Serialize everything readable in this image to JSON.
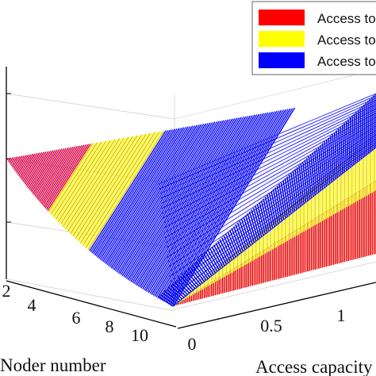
{
  "chart_data": {
    "type": "surface3d",
    "title": "",
    "xlabel": "Noder number",
    "ylabel": "Access capacity",
    "zlabel": "",
    "x_ticks": [
      "2",
      "4",
      "6",
      "8",
      "10"
    ],
    "y_ticks": [
      "0",
      "0.5",
      "1"
    ],
    "legend_position": "top-right",
    "grid": true,
    "series": [
      {
        "name": "Access to",
        "color": "#ff0000"
      },
      {
        "name": "Access to",
        "color": "#ffff00"
      },
      {
        "name": "Access to",
        "color": "#0000ff"
      }
    ]
  }
}
